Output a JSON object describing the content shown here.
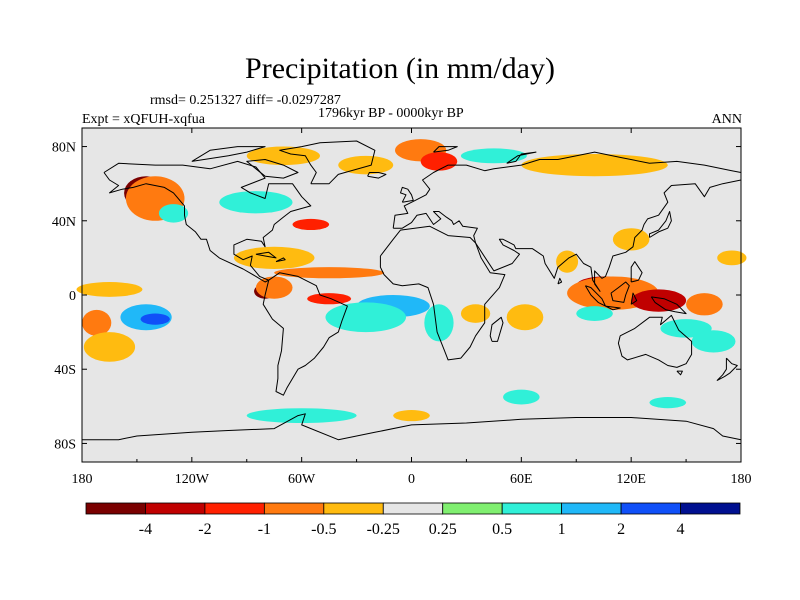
{
  "chart_data": {
    "type": "heatmap",
    "title": "Precipitation (in mm/day)",
    "stats_line": "rmsd= 0.251327 diff= -0.0297287",
    "period_line": "1796kyr BP - 0000kyr BP",
    "left_label": "Expt = xQFUH-xqfua",
    "right_label": "ANN",
    "xaxis": {
      "range": [
        -180,
        180
      ],
      "ticks": [
        -180,
        -120,
        -60,
        0,
        60,
        120,
        180
      ],
      "tick_labels": [
        "180",
        "120W",
        "60W",
        "0",
        "60E",
        "120E",
        "180"
      ]
    },
    "yaxis": {
      "range": [
        -90,
        90
      ],
      "ticks": [
        80,
        40,
        0,
        -40,
        -80
      ],
      "tick_labels": [
        "80N",
        "40N",
        "0",
        "40S",
        "80S"
      ]
    },
    "colorbar": {
      "colors": [
        "#7a0000",
        "#c00000",
        "#ff2000",
        "#ff7a10",
        "#ffbb10",
        "#e6e6e6",
        "#80ef70",
        "#30f0d8",
        "#20b8f8",
        "#1050f8",
        "#001090"
      ],
      "labels": [
        "-4",
        "-2",
        "-1",
        "-0.5",
        "-0.25",
        "0.25",
        "0.5",
        "1",
        "2",
        "4"
      ]
    },
    "anomaly_regions": [
      {
        "lon": -145,
        "lat": 55,
        "rx": 12,
        "ry": 9,
        "level": "-4"
      },
      {
        "lon": -140,
        "lat": 52,
        "rx": 16,
        "ry": 12,
        "level": "-0.5"
      },
      {
        "lon": -130,
        "lat": 44,
        "rx": 8,
        "ry": 5,
        "level": "0.5"
      },
      {
        "lon": -165,
        "lat": 3,
        "rx": 18,
        "ry": 4,
        "level": "-0.25"
      },
      {
        "lon": -145,
        "lat": -12,
        "rx": 14,
        "ry": 7,
        "level": "1"
      },
      {
        "lon": -140,
        "lat": -13,
        "rx": 8,
        "ry": 3,
        "level": "2"
      },
      {
        "lon": -172,
        "lat": -15,
        "rx": 8,
        "ry": 7,
        "level": "-0.5"
      },
      {
        "lon": -165,
        "lat": -28,
        "rx": 14,
        "ry": 8,
        "level": "-0.25"
      },
      {
        "lon": -75,
        "lat": 20,
        "rx": 22,
        "ry": 6,
        "level": "-0.25"
      },
      {
        "lon": -45,
        "lat": 12,
        "rx": 30,
        "ry": 3,
        "level": "-0.5"
      },
      {
        "lon": -80,
        "lat": 2,
        "rx": 6,
        "ry": 4,
        "level": "-4"
      },
      {
        "lon": -75,
        "lat": 4,
        "rx": 10,
        "ry": 6,
        "level": "-0.5"
      },
      {
        "lon": -45,
        "lat": -2,
        "rx": 12,
        "ry": 3,
        "level": "-1"
      },
      {
        "lon": -10,
        "lat": -6,
        "rx": 20,
        "ry": 6,
        "level": "1"
      },
      {
        "lon": -25,
        "lat": -12,
        "rx": 22,
        "ry": 8,
        "level": "0.5"
      },
      {
        "lon": 15,
        "lat": -15,
        "rx": 8,
        "ry": 10,
        "level": "0.5"
      },
      {
        "lon": 35,
        "lat": -10,
        "rx": 8,
        "ry": 5,
        "level": "-0.25"
      },
      {
        "lon": 62,
        "lat": -12,
        "rx": 10,
        "ry": 7,
        "level": "-0.25"
      },
      {
        "lon": -25,
        "lat": 70,
        "rx": 15,
        "ry": 5,
        "level": "-0.25"
      },
      {
        "lon": 5,
        "lat": 78,
        "rx": 14,
        "ry": 6,
        "level": "-0.5"
      },
      {
        "lon": 15,
        "lat": 72,
        "rx": 10,
        "ry": 5,
        "level": "-1"
      },
      {
        "lon": 45,
        "lat": 75,
        "rx": 18,
        "ry": 4,
        "level": "0.5"
      },
      {
        "lon": 100,
        "lat": 70,
        "rx": 40,
        "ry": 6,
        "level": "-0.25"
      },
      {
        "lon": -70,
        "lat": 75,
        "rx": 20,
        "ry": 5,
        "level": "-0.25"
      },
      {
        "lon": -85,
        "lat": 50,
        "rx": 20,
        "ry": 6,
        "level": "0.5"
      },
      {
        "lon": -55,
        "lat": 38,
        "rx": 10,
        "ry": 3,
        "level": "-1"
      },
      {
        "lon": 105,
        "lat": 5,
        "rx": 15,
        "ry": 5,
        "level": "-2"
      },
      {
        "lon": 110,
        "lat": 1,
        "rx": 25,
        "ry": 9,
        "level": "-0.5"
      },
      {
        "lon": 135,
        "lat": -3,
        "rx": 15,
        "ry": 6,
        "level": "-2"
      },
      {
        "lon": 160,
        "lat": -5,
        "rx": 10,
        "ry": 6,
        "level": "-0.5"
      },
      {
        "lon": 100,
        "lat": -10,
        "rx": 10,
        "ry": 4,
        "level": "0.5"
      },
      {
        "lon": 150,
        "lat": -18,
        "rx": 14,
        "ry": 5,
        "level": "0.5"
      },
      {
        "lon": 165,
        "lat": -25,
        "rx": 12,
        "ry": 6,
        "level": "0.5"
      },
      {
        "lon": 85,
        "lat": 18,
        "rx": 6,
        "ry": 6,
        "level": "-0.25"
      },
      {
        "lon": 120,
        "lat": 30,
        "rx": 10,
        "ry": 6,
        "level": "-0.25"
      },
      {
        "lon": 175,
        "lat": 20,
        "rx": 8,
        "ry": 4,
        "level": "-0.25"
      },
      {
        "lon": -60,
        "lat": -65,
        "rx": 30,
        "ry": 4,
        "level": "0.5"
      },
      {
        "lon": 60,
        "lat": -55,
        "rx": 10,
        "ry": 4,
        "level": "0.5"
      },
      {
        "lon": 140,
        "lat": -58,
        "rx": 10,
        "ry": 3,
        "level": "0.5"
      },
      {
        "lon": 0,
        "lat": -65,
        "rx": 10,
        "ry": 3,
        "level": "-0.25"
      }
    ]
  }
}
